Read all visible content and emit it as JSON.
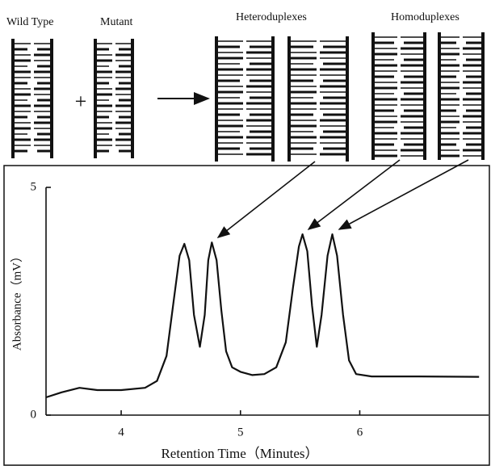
{
  "diagram": {
    "labels": [
      "Wild Type",
      "Mutant",
      "Heteroduplexes",
      "Homoduplexes"
    ],
    "plus": "+"
  },
  "chart_data": {
    "type": "line",
    "x_label": "Retention Time（Minutes）",
    "y_label": "Absorbance（mV）",
    "xlim": [
      3.37,
      7.08
    ],
    "ylim": [
      0,
      5
    ],
    "xticks": [
      4,
      5,
      6
    ],
    "yticks": [
      0,
      5
    ],
    "color": "#111111",
    "x": [
      3.37,
      3.5,
      3.65,
      3.8,
      4.0,
      4.2,
      4.3,
      4.38,
      4.44,
      4.49,
      4.53,
      4.57,
      4.61,
      4.66,
      4.7,
      4.73,
      4.76,
      4.8,
      4.84,
      4.88,
      4.93,
      5.0,
      5.1,
      5.2,
      5.3,
      5.38,
      5.44,
      5.49,
      5.52,
      5.56,
      5.6,
      5.64,
      5.68,
      5.73,
      5.77,
      5.81,
      5.86,
      5.91,
      5.97,
      6.1,
      6.5,
      7.0
    ],
    "values": [
      0.39,
      0.5,
      0.6,
      0.55,
      0.55,
      0.6,
      0.75,
      1.3,
      2.5,
      3.5,
      3.76,
      3.4,
      2.2,
      1.5,
      2.2,
      3.4,
      3.79,
      3.4,
      2.3,
      1.4,
      1.05,
      0.95,
      0.88,
      0.9,
      1.05,
      1.6,
      2.8,
      3.7,
      3.97,
      3.6,
      2.4,
      1.5,
      2.2,
      3.5,
      3.97,
      3.5,
      2.2,
      1.2,
      0.9,
      0.85,
      0.85,
      0.84
    ]
  }
}
